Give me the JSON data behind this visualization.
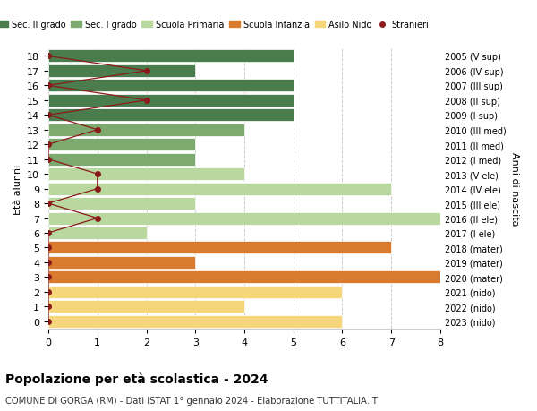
{
  "ages": [
    18,
    17,
    16,
    15,
    14,
    13,
    12,
    11,
    10,
    9,
    8,
    7,
    6,
    5,
    4,
    3,
    2,
    1,
    0
  ],
  "years": [
    "2005 (V sup)",
    "2006 (IV sup)",
    "2007 (III sup)",
    "2008 (II sup)",
    "2009 (I sup)",
    "2010 (III med)",
    "2011 (II med)",
    "2012 (I med)",
    "2013 (V ele)",
    "2014 (IV ele)",
    "2015 (III ele)",
    "2016 (II ele)",
    "2017 (I ele)",
    "2018 (mater)",
    "2019 (mater)",
    "2020 (mater)",
    "2021 (nido)",
    "2022 (nido)",
    "2023 (nido)"
  ],
  "bar_values": [
    5,
    3,
    5,
    5,
    5,
    4,
    3,
    3,
    4,
    7,
    3,
    8,
    2,
    7,
    3,
    8,
    6,
    4,
    6
  ],
  "bar_colors": [
    "#4a7c4e",
    "#4a7c4e",
    "#4a7c4e",
    "#4a7c4e",
    "#4a7c4e",
    "#7daa6e",
    "#7daa6e",
    "#7daa6e",
    "#b8d8a0",
    "#b8d8a0",
    "#b8d8a0",
    "#b8d8a0",
    "#b8d8a0",
    "#d97b2e",
    "#d97b2e",
    "#d97b2e",
    "#f5d67a",
    "#f5d67a",
    "#f5d67a"
  ],
  "stranieri_x": [
    0,
    2,
    0,
    2,
    0,
    1,
    0,
    0,
    1,
    1,
    0,
    1,
    0,
    0,
    0,
    0,
    0,
    0,
    0
  ],
  "stranieri_color": "#8b1a1a",
  "legend_entries": [
    {
      "label": "Sec. II grado",
      "color": "#4a7c4e"
    },
    {
      "label": "Sec. I grado",
      "color": "#7daa6e"
    },
    {
      "label": "Scuola Primaria",
      "color": "#b8d8a0"
    },
    {
      "label": "Scuola Infanzia",
      "color": "#d97b2e"
    },
    {
      "label": "Asilo Nido",
      "color": "#f5d67a"
    },
    {
      "label": "Stranieri",
      "color": "#8b1a1a"
    }
  ],
  "ylabel": "Età alunni",
  "ylabel2": "Anni di nascita",
  "title": "Popolazione per età scolastica - 2024",
  "subtitle": "COMUNE DI GORGA (RM) - Dati ISTAT 1° gennaio 2024 - Elaborazione TUTTITALIA.IT",
  "xlim": [
    0,
    8
  ],
  "xticks": [
    0,
    1,
    2,
    3,
    4,
    5,
    6,
    7,
    8
  ],
  "background_color": "#ffffff",
  "grid_color": "#cccccc"
}
